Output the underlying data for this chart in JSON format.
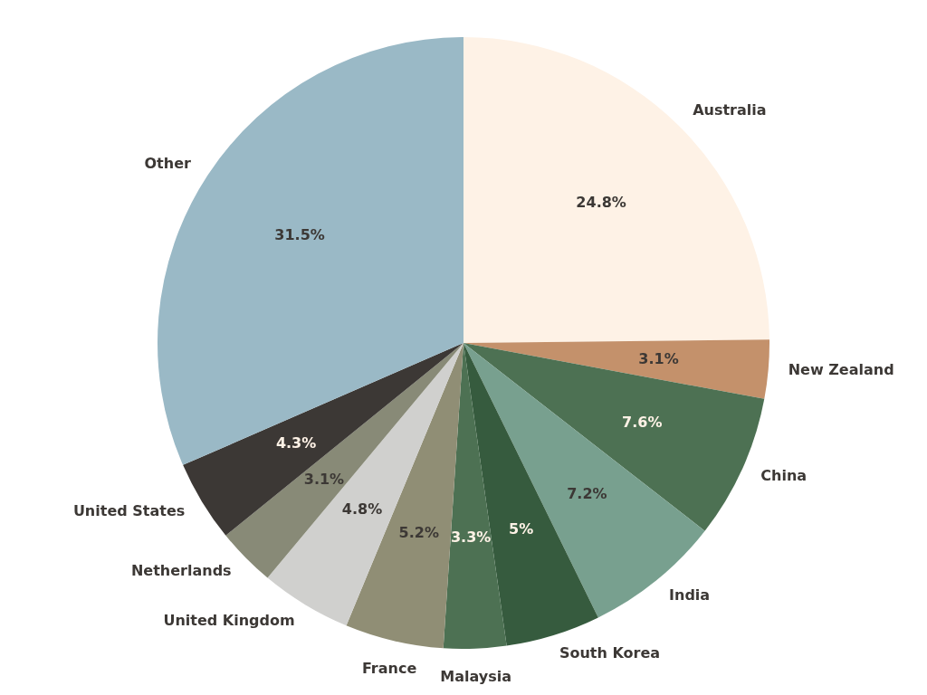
{
  "chart_data": {
    "type": "pie",
    "categories": [
      "Australia",
      "New Zealand",
      "China",
      "India",
      "South Korea",
      "Malaysia",
      "France",
      "United Kingdom",
      "Netherlands",
      "United States",
      "Other"
    ],
    "values": [
      24.8,
      3.1,
      7.6,
      7.2,
      5,
      3.3,
      5.2,
      4.8,
      3.1,
      4.3,
      31.5
    ],
    "colors": [
      "#fef2e6",
      "#c4916b",
      "#4d7153",
      "#78a08f",
      "#365b3e",
      "#4d7153",
      "#908e75",
      "#d0d0ce",
      "#888a77",
      "#3c3835",
      "#9ab9c6"
    ],
    "value_labels": [
      "24.8%",
      "3.1%",
      "7.6%",
      "7.2%",
      "5%",
      "3.3%",
      "5.2%",
      "4.8%",
      "3.1%",
      "4.3%",
      "31.5%"
    ],
    "legend": false
  }
}
